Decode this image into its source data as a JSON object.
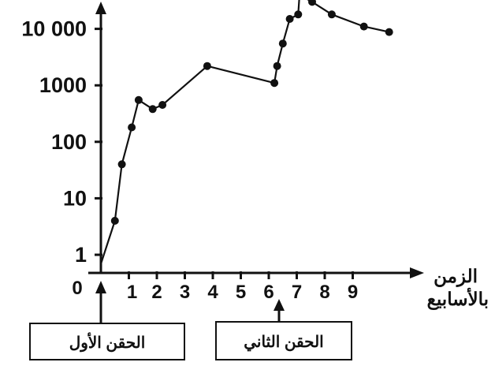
{
  "chart_data": {
    "type": "line",
    "xlabel_line1": "الزمن",
    "xlabel_line2": "بالأسابيع",
    "origin_label": "0",
    "x_ticks": [
      "1",
      "2",
      "3",
      "4",
      "5",
      "6",
      "7",
      "8",
      "9"
    ],
    "y_ticks": [
      "1",
      "10",
      "100",
      "1000",
      "10 000"
    ],
    "y_scale": "log",
    "grid": false,
    "series": [
      {
        "x": [
          0,
          0.5,
          0.75,
          1.1,
          1.35,
          1.85,
          2.2,
          3.8,
          6.2,
          6.3,
          6.5,
          6.75,
          7.05,
          7.1,
          7.55,
          8.25,
          9.4,
          10.3
        ],
        "y": [
          0.5,
          4,
          40,
          180,
          550,
          380,
          450,
          2200,
          1100,
          2200,
          5500,
          15000,
          18000,
          40000,
          30000,
          18000,
          11000,
          8800
        ]
      }
    ],
    "annotations": [
      {
        "text": "الحقن الأول",
        "at_x": 0
      },
      {
        "text": "الحقن الثاني",
        "at_x": 6
      }
    ]
  },
  "colors": {
    "ink": "#111111",
    "background": "#ffffff"
  }
}
